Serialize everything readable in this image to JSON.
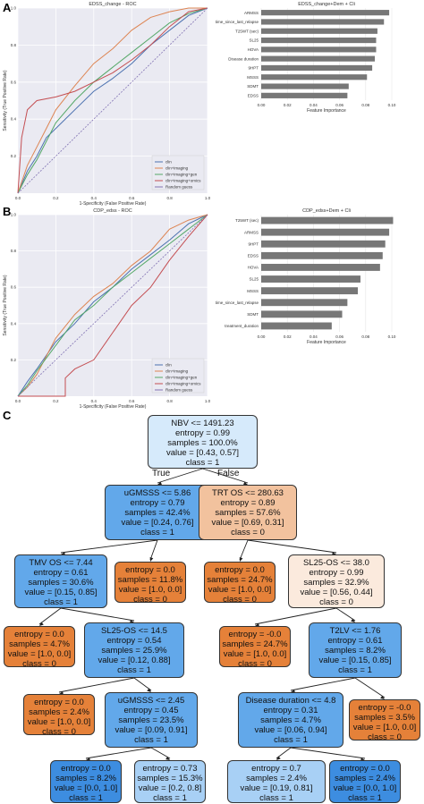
{
  "panels": {
    "a": "A",
    "b": "B",
    "c": "C"
  },
  "chart_data": [
    {
      "type": "line",
      "title": "EDSS_change - ROC",
      "xlabel": "1-Specificity (False Positive Rate)",
      "ylabel": "Sensitivity (True Positive Rate)",
      "xlim": [
        0,
        1
      ],
      "ylim": [
        0,
        1
      ],
      "xticks": [
        "0.0",
        "0.2",
        "0.4",
        "0.6",
        "0.8",
        "1.0"
      ],
      "yticks": [
        "0.2",
        "0.4",
        "0.6",
        "0.8",
        "1.0"
      ],
      "grid": true,
      "legend_position": "bottom-right",
      "colors": [
        "#4c72b0",
        "#dd8452",
        "#55a868",
        "#c44e52",
        "#8172b3"
      ],
      "series": [
        {
          "name": "clin",
          "x": [
            0,
            0.05,
            0.1,
            0.15,
            0.2,
            0.3,
            0.4,
            0.5,
            0.6,
            0.7,
            0.8,
            0.9,
            1.0
          ],
          "y": [
            0,
            0.12,
            0.2,
            0.3,
            0.35,
            0.45,
            0.55,
            0.62,
            0.7,
            0.8,
            0.88,
            0.96,
            1.0
          ]
        },
        {
          "name": "clin+imaging",
          "x": [
            0,
            0.05,
            0.1,
            0.15,
            0.2,
            0.3,
            0.4,
            0.5,
            0.6,
            0.7,
            0.8,
            0.9,
            1.0
          ],
          "y": [
            0,
            0.15,
            0.25,
            0.35,
            0.45,
            0.58,
            0.7,
            0.78,
            0.88,
            0.95,
            0.98,
            1.0,
            1.0
          ]
        },
        {
          "name": "clin+imaging+gen",
          "x": [
            0,
            0.05,
            0.1,
            0.15,
            0.2,
            0.3,
            0.4,
            0.5,
            0.6,
            0.7,
            0.8,
            0.9,
            1.0
          ],
          "y": [
            0,
            0.1,
            0.18,
            0.28,
            0.38,
            0.5,
            0.6,
            0.68,
            0.76,
            0.84,
            0.92,
            0.97,
            1.0
          ]
        },
        {
          "name": "clin+imaging+omics",
          "x": [
            0,
            0.02,
            0.05,
            0.1,
            0.2,
            0.3,
            0.4,
            0.5,
            0.6,
            0.7,
            0.8,
            0.9,
            1.0
          ],
          "y": [
            0,
            0.3,
            0.45,
            0.5,
            0.52,
            0.55,
            0.6,
            0.65,
            0.72,
            0.8,
            0.9,
            0.98,
            1.0
          ]
        },
        {
          "name": "Random guess",
          "x": [
            0,
            1
          ],
          "y": [
            0,
            1
          ]
        }
      ]
    },
    {
      "type": "bar",
      "orientation": "horizontal",
      "title": "EDSS_change+Dem + Cli",
      "xlabel": "Feature Importance",
      "xlim": [
        0,
        0.1
      ],
      "xticks": [
        "0.00",
        "0.02",
        "0.04",
        "0.06",
        "0.08",
        "0.10"
      ],
      "categories": [
        "ARMSS",
        "time_since_last_relapse",
        "T25WT (sec)",
        "SL25",
        "HOVA",
        "Disease duration",
        "9HPT",
        "MSSS",
        "SDMT",
        "EDSS"
      ],
      "values": [
        0.098,
        0.094,
        0.089,
        0.088,
        0.088,
        0.087,
        0.085,
        0.081,
        0.067,
        0.066
      ],
      "bar_color": "#777777"
    },
    {
      "type": "line",
      "title": "CDP_edss - ROC",
      "xlabel": "1-Specificity (False Positive Rate)",
      "ylabel": "Sensitivity (True Positive Rate)",
      "xlim": [
        0,
        1
      ],
      "ylim": [
        0,
        1
      ],
      "xticks": [
        "0.0",
        "0.2",
        "0.4",
        "0.6",
        "0.8",
        "1.0"
      ],
      "yticks": [
        "0.2",
        "0.4",
        "0.6",
        "0.8",
        "1.0"
      ],
      "grid": true,
      "legend_position": "bottom-right",
      "colors": [
        "#4c72b0",
        "#dd8452",
        "#55a868",
        "#c44e52",
        "#8172b3"
      ],
      "series": [
        {
          "name": "clin",
          "x": [
            0,
            0.05,
            0.1,
            0.2,
            0.3,
            0.4,
            0.5,
            0.6,
            0.7,
            0.8,
            0.9,
            1.0
          ],
          "y": [
            0,
            0.08,
            0.15,
            0.3,
            0.4,
            0.52,
            0.6,
            0.7,
            0.78,
            0.86,
            0.95,
            1.0
          ]
        },
        {
          "name": "clin+imaging",
          "x": [
            0,
            0.05,
            0.1,
            0.2,
            0.3,
            0.4,
            0.5,
            0.6,
            0.7,
            0.8,
            0.9,
            1.0
          ],
          "y": [
            0,
            0.05,
            0.12,
            0.32,
            0.45,
            0.55,
            0.62,
            0.72,
            0.8,
            0.92,
            0.97,
            1.0
          ]
        },
        {
          "name": "clin+imaging+gen",
          "x": [
            0,
            0.05,
            0.1,
            0.2,
            0.3,
            0.4,
            0.5,
            0.6,
            0.7,
            0.8,
            0.9,
            1.0
          ],
          "y": [
            0,
            0.06,
            0.14,
            0.28,
            0.42,
            0.5,
            0.6,
            0.68,
            0.76,
            0.84,
            0.92,
            1.0
          ]
        },
        {
          "name": "clin+imaging+omics",
          "x": [
            0,
            0.2,
            0.25,
            0.25,
            0.3,
            0.4,
            0.5,
            0.6,
            0.7,
            0.8,
            0.9,
            1.0
          ],
          "y": [
            0,
            0,
            0,
            0.1,
            0.15,
            0.2,
            0.35,
            0.5,
            0.6,
            0.75,
            0.88,
            1.0
          ]
        },
        {
          "name": "Random guess",
          "x": [
            0,
            1
          ],
          "y": [
            0,
            1
          ]
        }
      ]
    },
    {
      "type": "bar",
      "orientation": "horizontal",
      "title": "CDP_edss+Dem + Cli",
      "xlabel": "Feature Importance",
      "xlim": [
        0,
        0.1
      ],
      "xticks": [
        "0.00",
        "0.02",
        "0.04",
        "0.06",
        "0.08",
        "0.10"
      ],
      "categories": [
        "T25WT (sec)",
        "ARMSS",
        "9HPT",
        "EDSS",
        "HOVA",
        "SL25",
        "MSSS",
        "time_since_last_relapse",
        "SDMT",
        "treatment_duration"
      ],
      "values": [
        0.101,
        0.098,
        0.095,
        0.093,
        0.091,
        0.076,
        0.074,
        0.066,
        0.062,
        0.054
      ],
      "bar_color": "#777777"
    }
  ],
  "tree": {
    "edge_labels": {
      "true": "True",
      "false": "False"
    },
    "colors": {
      "blue_dark": "#3d8de0",
      "blue_mid": "#62a8ea",
      "blue_light": "#a8d0f5",
      "blue_pale": "#d6eafb",
      "orange": "#e58139",
      "orange_light": "#f2c29e",
      "orange_pale": "#fbeadd"
    },
    "nodes": [
      {
        "id": "n0",
        "color": "blue_pale",
        "lines": [
          "NBV <= 1491.23",
          "entropy = 0.99",
          "samples = 100.0%",
          "value = [0.43, 0.57]",
          "class = 1"
        ]
      },
      {
        "id": "n1",
        "color": "blue_mid",
        "lines": [
          "uGMSSS <= 5.86",
          "entropy = 0.79",
          "samples = 42.4%",
          "value = [0.24, 0.76]",
          "class = 1"
        ]
      },
      {
        "id": "n2",
        "color": "orange_light",
        "lines": [
          "TRT OS <= 280.63",
          "entropy = 0.89",
          "samples = 57.6%",
          "value = [0.69, 0.31]",
          "class = 0"
        ]
      },
      {
        "id": "n3",
        "color": "blue_mid",
        "lines": [
          "TMV OS <= 7.44",
          "entropy = 0.61",
          "samples = 30.6%",
          "value = [0.15, 0.85]",
          "class = 1"
        ]
      },
      {
        "id": "n4",
        "color": "orange",
        "lines": [
          "entropy = 0.0",
          "samples = 11.8%",
          "value = [1.0, 0.0]",
          "class = 0"
        ]
      },
      {
        "id": "n5",
        "color": "orange",
        "lines": [
          "entropy = 0.0",
          "samples = 24.7%",
          "value = [1.0, 0.0]",
          "class = 0"
        ]
      },
      {
        "id": "n6",
        "color": "orange_pale",
        "lines": [
          "SL25-OS <= 38.0",
          "entropy = 0.99",
          "samples = 32.9%",
          "value = [0.56, 0.44]",
          "class = 0"
        ]
      },
      {
        "id": "n7",
        "color": "orange",
        "lines": [
          "entropy = 0.0",
          "samples = 4.7%",
          "value = [1.0, 0.0]",
          "class = 0"
        ]
      },
      {
        "id": "n8",
        "color": "blue_mid",
        "lines": [
          "SL25-OS <= 14.5",
          "entropy = 0.54",
          "samples = 25.9%",
          "value = [0.12, 0.88]",
          "class = 1"
        ]
      },
      {
        "id": "n9",
        "color": "orange",
        "lines": [
          "entropy = -0.0",
          "samples = 24.7%",
          "value = [1.0, 0.0]",
          "class = 0"
        ]
      },
      {
        "id": "n10",
        "color": "blue_mid",
        "lines": [
          "T2LV <= 1.76",
          "entropy = 0.61",
          "samples = 8.2%",
          "value = [0.15, 0.85]",
          "class = 1"
        ]
      },
      {
        "id": "n11",
        "color": "orange",
        "lines": [
          "entropy = 0.0",
          "samples = 2.4%",
          "value = [1.0, 0.0]",
          "class = 0"
        ]
      },
      {
        "id": "n12",
        "color": "blue_mid",
        "lines": [
          "uGMSSS <= 2.45",
          "entropy = 0.45",
          "samples = 23.5%",
          "value = [0.09, 0.91]",
          "class = 1"
        ]
      },
      {
        "id": "n13",
        "color": "blue_mid",
        "lines": [
          "Disease duration <= 4.8",
          "entropy = 0.31",
          "samples = 4.7%",
          "value = [0.06, 0.94]",
          "class = 1"
        ]
      },
      {
        "id": "n14",
        "color": "orange",
        "lines": [
          "entropy = -0.0",
          "samples = 3.5%",
          "value = [1.0, 0.0]",
          "class = 0"
        ]
      },
      {
        "id": "n15",
        "color": "blue_dark",
        "lines": [
          "entropy = 0.0",
          "samples = 8.2%",
          "value = [0.0, 1.0]",
          "class = 1"
        ]
      },
      {
        "id": "n16",
        "color": "blue_light",
        "lines": [
          "entropy = 0.73",
          "samples = 15.3%",
          "value = [0.2, 0.8]",
          "class = 1"
        ]
      },
      {
        "id": "n17",
        "color": "blue_light",
        "lines": [
          "entropy = 0.7",
          "samples = 2.4%",
          "value = [0.19, 0.81]",
          "class = 1"
        ]
      },
      {
        "id": "n18",
        "color": "blue_dark",
        "lines": [
          "entropy = 0.0",
          "samples = 2.4%",
          "value = [0.0, 1.0]",
          "class = 1"
        ]
      }
    ]
  }
}
